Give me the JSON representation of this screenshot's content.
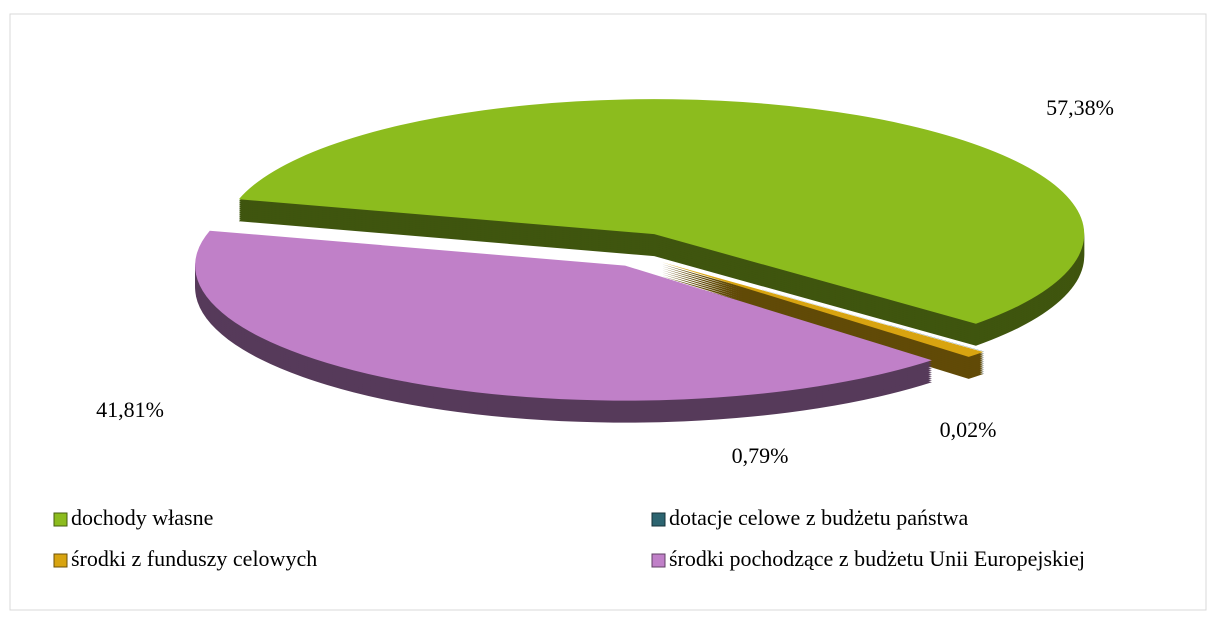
{
  "chart_data": {
    "type": "pie",
    "categories": [
      "dochody własne",
      "dotacje celowe z budżetu państwa",
      "środki z funduszy celowych",
      "środki pochodzące z budżetu Unii Europejskiej"
    ],
    "values": [
      57.38,
      0.02,
      0.79,
      41.81
    ],
    "value_labels": [
      "57,38%",
      "0,02%",
      "0,79%",
      "41,81%"
    ],
    "colors": [
      "#8cbc1e",
      "#2c6470",
      "#d8a410",
      "#c080c8"
    ],
    "legend": "bottom"
  }
}
